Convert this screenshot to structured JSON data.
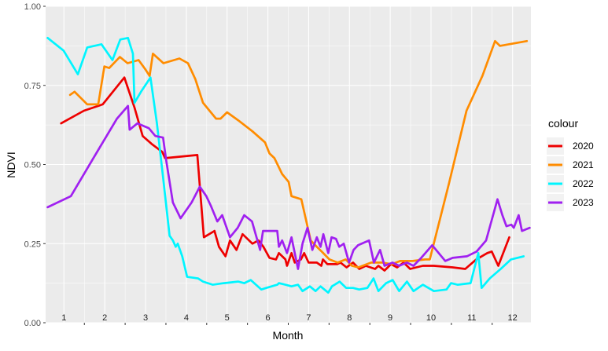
{
  "chart_data": {
    "type": "line",
    "title": "",
    "xlabel": "Month",
    "ylabel": "NDVI",
    "xlim": [
      0.55,
      12.45
    ],
    "ylim": [
      0,
      1
    ],
    "x_ticks": [
      1,
      2,
      3,
      4,
      5,
      6,
      7,
      8,
      9,
      10,
      11,
      12
    ],
    "x_tick_labels": [
      "1",
      "2",
      "3",
      "4",
      "5",
      "6",
      "7",
      "8",
      "9",
      "10",
      "11",
      "12"
    ],
    "y_ticks": [
      0,
      0.25,
      0.5,
      0.75,
      1
    ],
    "y_tick_labels": [
      "0.00",
      "0.25",
      "0.50",
      "0.75",
      "1.00"
    ],
    "grid": true,
    "legend": {
      "title": "colour",
      "position": "right"
    },
    "series": [
      {
        "name": "2020",
        "color": "#EE0000",
        "points": [
          [
            0.93,
            0.63
          ],
          [
            1.49,
            0.67
          ],
          [
            1.95,
            0.69
          ],
          [
            2.48,
            0.775
          ],
          [
            2.73,
            0.68
          ],
          [
            2.93,
            0.59
          ],
          [
            3.15,
            0.565
          ],
          [
            3.41,
            0.54
          ],
          [
            3.48,
            0.52
          ],
          [
            4.27,
            0.53
          ],
          [
            4.43,
            0.27
          ],
          [
            4.69,
            0.29
          ],
          [
            4.8,
            0.24
          ],
          [
            4.96,
            0.21
          ],
          [
            5.07,
            0.26
          ],
          [
            5.23,
            0.23
          ],
          [
            5.38,
            0.28
          ],
          [
            5.62,
            0.25
          ],
          [
            5.77,
            0.26
          ],
          [
            5.89,
            0.24
          ],
          [
            6.04,
            0.205
          ],
          [
            6.2,
            0.2
          ],
          [
            6.27,
            0.22
          ],
          [
            6.43,
            0.2
          ],
          [
            6.47,
            0.18
          ],
          [
            6.58,
            0.22
          ],
          [
            6.66,
            0.19
          ],
          [
            6.81,
            0.2
          ],
          [
            6.89,
            0.22
          ],
          [
            7.0,
            0.19
          ],
          [
            7.2,
            0.19
          ],
          [
            7.31,
            0.18
          ],
          [
            7.35,
            0.2
          ],
          [
            7.46,
            0.185
          ],
          [
            7.7,
            0.185
          ],
          [
            7.78,
            0.19
          ],
          [
            7.93,
            0.175
          ],
          [
            8.09,
            0.19
          ],
          [
            8.24,
            0.17
          ],
          [
            8.4,
            0.18
          ],
          [
            8.63,
            0.17
          ],
          [
            8.71,
            0.18
          ],
          [
            8.86,
            0.165
          ],
          [
            9.02,
            0.185
          ],
          [
            9.17,
            0.175
          ],
          [
            9.33,
            0.19
          ],
          [
            9.49,
            0.17
          ],
          [
            9.64,
            0.175
          ],
          [
            9.8,
            0.18
          ],
          [
            10.07,
            0.18
          ],
          [
            10.53,
            0.175
          ],
          [
            10.84,
            0.17
          ],
          [
            11.11,
            0.2
          ],
          [
            11.38,
            0.22
          ],
          [
            11.49,
            0.225
          ],
          [
            11.65,
            0.18
          ],
          [
            11.92,
            0.27
          ]
        ]
      },
      {
        "name": "2021",
        "color": "#FF8C00",
        "points": [
          [
            1.15,
            0.72
          ],
          [
            1.26,
            0.73
          ],
          [
            1.57,
            0.69
          ],
          [
            1.84,
            0.69
          ],
          [
            1.99,
            0.81
          ],
          [
            2.11,
            0.805
          ],
          [
            2.37,
            0.84
          ],
          [
            2.56,
            0.82
          ],
          [
            2.83,
            0.83
          ],
          [
            3.0,
            0.8
          ],
          [
            3.1,
            0.78
          ],
          [
            3.18,
            0.85
          ],
          [
            3.44,
            0.82
          ],
          [
            3.83,
            0.835
          ],
          [
            4.04,
            0.82
          ],
          [
            4.22,
            0.77
          ],
          [
            4.41,
            0.695
          ],
          [
            4.73,
            0.645
          ],
          [
            4.84,
            0.645
          ],
          [
            5.0,
            0.665
          ],
          [
            5.27,
            0.64
          ],
          [
            5.62,
            0.605
          ],
          [
            5.93,
            0.57
          ],
          [
            6.04,
            0.535
          ],
          [
            6.16,
            0.52
          ],
          [
            6.35,
            0.47
          ],
          [
            6.51,
            0.445
          ],
          [
            6.58,
            0.4
          ],
          [
            6.82,
            0.39
          ],
          [
            7.05,
            0.26
          ],
          [
            7.2,
            0.24
          ],
          [
            7.32,
            0.225
          ],
          [
            7.51,
            0.2
          ],
          [
            7.71,
            0.19
          ],
          [
            7.91,
            0.2
          ],
          [
            8.06,
            0.18
          ],
          [
            8.22,
            0.175
          ],
          [
            8.53,
            0.19
          ],
          [
            8.81,
            0.19
          ],
          [
            9.04,
            0.185
          ],
          [
            9.24,
            0.195
          ],
          [
            9.55,
            0.195
          ],
          [
            9.86,
            0.2
          ],
          [
            9.97,
            0.2
          ],
          [
            10.44,
            0.44
          ],
          [
            10.87,
            0.67
          ],
          [
            11.26,
            0.78
          ],
          [
            11.57,
            0.89
          ],
          [
            11.69,
            0.875
          ],
          [
            12.35,
            0.89
          ]
        ]
      },
      {
        "name": "2022",
        "color": "#00F5FF",
        "points": [
          [
            0.6,
            0.9
          ],
          [
            0.99,
            0.86
          ],
          [
            1.34,
            0.785
          ],
          [
            1.57,
            0.87
          ],
          [
            1.92,
            0.88
          ],
          [
            2.19,
            0.83
          ],
          [
            2.38,
            0.895
          ],
          [
            2.57,
            0.9
          ],
          [
            2.69,
            0.85
          ],
          [
            2.73,
            0.695
          ],
          [
            2.89,
            0.73
          ],
          [
            3.12,
            0.775
          ],
          [
            3.28,
            0.63
          ],
          [
            3.43,
            0.46
          ],
          [
            3.59,
            0.275
          ],
          [
            3.67,
            0.26
          ],
          [
            3.74,
            0.24
          ],
          [
            3.79,
            0.25
          ],
          [
            3.9,
            0.21
          ],
          [
            4.02,
            0.145
          ],
          [
            4.29,
            0.14
          ],
          [
            4.41,
            0.13
          ],
          [
            4.65,
            0.12
          ],
          [
            4.92,
            0.125
          ],
          [
            5.27,
            0.13
          ],
          [
            5.42,
            0.125
          ],
          [
            5.58,
            0.135
          ],
          [
            5.84,
            0.105
          ],
          [
            5.96,
            0.11
          ],
          [
            6.23,
            0.12
          ],
          [
            6.27,
            0.125
          ],
          [
            6.43,
            0.12
          ],
          [
            6.58,
            0.115
          ],
          [
            6.74,
            0.12
          ],
          [
            6.85,
            0.1
          ],
          [
            7.03,
            0.115
          ],
          [
            7.17,
            0.1
          ],
          [
            7.29,
            0.115
          ],
          [
            7.48,
            0.095
          ],
          [
            7.57,
            0.115
          ],
          [
            7.76,
            0.13
          ],
          [
            7.92,
            0.11
          ],
          [
            8.09,
            0.11
          ],
          [
            8.24,
            0.105
          ],
          [
            8.44,
            0.11
          ],
          [
            8.59,
            0.14
          ],
          [
            8.71,
            0.1
          ],
          [
            8.9,
            0.125
          ],
          [
            9.06,
            0.135
          ],
          [
            9.22,
            0.1
          ],
          [
            9.41,
            0.13
          ],
          [
            9.57,
            0.1
          ],
          [
            9.8,
            0.12
          ],
          [
            10.07,
            0.1
          ],
          [
            10.38,
            0.105
          ],
          [
            10.49,
            0.125
          ],
          [
            10.65,
            0.12
          ],
          [
            10.97,
            0.125
          ],
          [
            11.16,
            0.22
          ],
          [
            11.24,
            0.11
          ],
          [
            11.44,
            0.14
          ],
          [
            11.71,
            0.17
          ],
          [
            11.96,
            0.2
          ],
          [
            12.27,
            0.21
          ]
        ]
      },
      {
        "name": "2023",
        "color": "#A020F0",
        "points": [
          [
            0.6,
            0.365
          ],
          [
            1.17,
            0.4
          ],
          [
            1.72,
            0.52
          ],
          [
            2.3,
            0.645
          ],
          [
            2.57,
            0.685
          ],
          [
            2.61,
            0.61
          ],
          [
            2.8,
            0.63
          ],
          [
            3.08,
            0.615
          ],
          [
            3.24,
            0.59
          ],
          [
            3.43,
            0.585
          ],
          [
            3.51,
            0.51
          ],
          [
            3.67,
            0.38
          ],
          [
            3.86,
            0.33
          ],
          [
            4.13,
            0.38
          ],
          [
            4.33,
            0.43
          ],
          [
            4.49,
            0.4
          ],
          [
            4.6,
            0.37
          ],
          [
            4.76,
            0.32
          ],
          [
            4.88,
            0.34
          ],
          [
            5.07,
            0.27
          ],
          [
            5.26,
            0.3
          ],
          [
            5.42,
            0.34
          ],
          [
            5.61,
            0.32
          ],
          [
            5.81,
            0.23
          ],
          [
            5.88,
            0.29
          ],
          [
            6.04,
            0.29
          ],
          [
            6.23,
            0.29
          ],
          [
            6.27,
            0.24
          ],
          [
            6.35,
            0.26
          ],
          [
            6.47,
            0.22
          ],
          [
            6.58,
            0.27
          ],
          [
            6.74,
            0.17
          ],
          [
            6.85,
            0.25
          ],
          [
            6.97,
            0.3
          ],
          [
            7.09,
            0.23
          ],
          [
            7.2,
            0.27
          ],
          [
            7.29,
            0.24
          ],
          [
            7.36,
            0.28
          ],
          [
            7.48,
            0.22
          ],
          [
            7.56,
            0.27
          ],
          [
            7.67,
            0.265
          ],
          [
            7.75,
            0.24
          ],
          [
            7.86,
            0.25
          ],
          [
            7.99,
            0.19
          ],
          [
            8.1,
            0.23
          ],
          [
            8.21,
            0.245
          ],
          [
            8.48,
            0.26
          ],
          [
            8.6,
            0.19
          ],
          [
            8.75,
            0.23
          ],
          [
            8.86,
            0.18
          ],
          [
            9.06,
            0.19
          ],
          [
            9.22,
            0.18
          ],
          [
            9.41,
            0.19
          ],
          [
            9.57,
            0.18
          ],
          [
            9.76,
            0.205
          ],
          [
            10.03,
            0.245
          ],
          [
            10.35,
            0.195
          ],
          [
            10.53,
            0.205
          ],
          [
            10.88,
            0.21
          ],
          [
            11.12,
            0.225
          ],
          [
            11.35,
            0.26
          ],
          [
            11.63,
            0.39
          ],
          [
            11.75,
            0.34
          ],
          [
            11.85,
            0.305
          ],
          [
            11.97,
            0.31
          ],
          [
            12.03,
            0.3
          ],
          [
            12.15,
            0.34
          ],
          [
            12.23,
            0.29
          ],
          [
            12.42,
            0.3
          ]
        ]
      }
    ]
  }
}
